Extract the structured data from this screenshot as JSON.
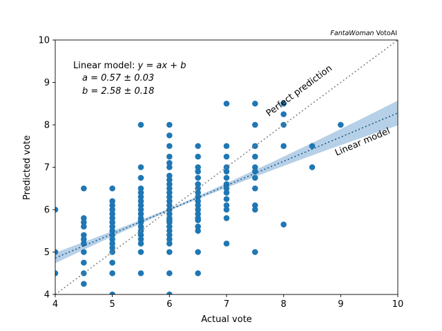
{
  "chart_data": {
    "type": "scatter",
    "title": "",
    "credit": {
      "italic": "FantaWoman",
      "normal": " VotoAI"
    },
    "xlabel": "Actual vote",
    "ylabel": "Predicted vote",
    "xlim": [
      4,
      10
    ],
    "ylim": [
      4,
      10
    ],
    "xticks": [
      "4",
      "5",
      "6",
      "7",
      "8",
      "9",
      "10"
    ],
    "yticks": [
      "4",
      "5",
      "6",
      "7",
      "8",
      "9",
      "10"
    ],
    "grid": false,
    "colors": {
      "points": "#1f77b4",
      "fit_line": "#1f77b4",
      "fit_band": "#a9c8e3",
      "perfect_line": "#808080"
    },
    "model": {
      "heading_prefix": "Linear model: ",
      "heading_formula": "y = ax + b",
      "a_text": "a = 0.57 ± 0.03",
      "b_text": "b = 2.58 ± 0.18",
      "a": 0.57,
      "b": 2.58
    },
    "lines": [
      {
        "name": "Perfect prediction",
        "slope": 1,
        "intercept": 0
      },
      {
        "name": "Linear model",
        "slope": 0.57,
        "intercept": 2.58
      }
    ],
    "points": [
      [
        4,
        6
      ],
      [
        4,
        5
      ],
      [
        4,
        4.5
      ],
      [
        4.5,
        6.5
      ],
      [
        4.5,
        5.8
      ],
      [
        4.5,
        5.7
      ],
      [
        4.5,
        5.6
      ],
      [
        4.5,
        5.4
      ],
      [
        4.5,
        5.3
      ],
      [
        4.5,
        5.2
      ],
      [
        4.5,
        5
      ],
      [
        4.5,
        4.75
      ],
      [
        4.5,
        4.5
      ],
      [
        4.5,
        4.25
      ],
      [
        5,
        6.5
      ],
      [
        5,
        6.2
      ],
      [
        5,
        6.1
      ],
      [
        5,
        6
      ],
      [
        5,
        5.9
      ],
      [
        5,
        5.8
      ],
      [
        5,
        5.7
      ],
      [
        5,
        5.6
      ],
      [
        5,
        5.5
      ],
      [
        5,
        5.4
      ],
      [
        5,
        5.3
      ],
      [
        5,
        5.2
      ],
      [
        5,
        5.1
      ],
      [
        5,
        5
      ],
      [
        5,
        4.75
      ],
      [
        5,
        4.5
      ],
      [
        5,
        4
      ],
      [
        5.5,
        8
      ],
      [
        5.5,
        7
      ],
      [
        5.5,
        6.75
      ],
      [
        5.5,
        6.5
      ],
      [
        5.5,
        6.4
      ],
      [
        5.5,
        6.3
      ],
      [
        5.5,
        6.2
      ],
      [
        5.5,
        6.1
      ],
      [
        5.5,
        6
      ],
      [
        5.5,
        5.9
      ],
      [
        5.5,
        5.8
      ],
      [
        5.5,
        5.75
      ],
      [
        5.5,
        5.7
      ],
      [
        5.5,
        5.6
      ],
      [
        5.5,
        5.5
      ],
      [
        5.5,
        5.4
      ],
      [
        5.5,
        5.3
      ],
      [
        5.5,
        5.2
      ],
      [
        5.5,
        5
      ],
      [
        5.5,
        4.5
      ],
      [
        6,
        8
      ],
      [
        6,
        7.75
      ],
      [
        6,
        7.5
      ],
      [
        6,
        7.25
      ],
      [
        6,
        7.1
      ],
      [
        6,
        7
      ],
      [
        6,
        6.8
      ],
      [
        6,
        6.7
      ],
      [
        6,
        6.6
      ],
      [
        6,
        6.5
      ],
      [
        6,
        6.4
      ],
      [
        6,
        6.3
      ],
      [
        6,
        6.2
      ],
      [
        6,
        6.1
      ],
      [
        6,
        6
      ],
      [
        6,
        5.9
      ],
      [
        6,
        5.8
      ],
      [
        6,
        5.75
      ],
      [
        6,
        5.7
      ],
      [
        6,
        5.6
      ],
      [
        6,
        5.5
      ],
      [
        6,
        5.4
      ],
      [
        6,
        5.3
      ],
      [
        6,
        5.2
      ],
      [
        6,
        5
      ],
      [
        6,
        4.5
      ],
      [
        6,
        4
      ],
      [
        6.5,
        7.5
      ],
      [
        6.5,
        7.25
      ],
      [
        6.5,
        7
      ],
      [
        6.5,
        6.9
      ],
      [
        6.5,
        6.75
      ],
      [
        6.5,
        6.6
      ],
      [
        6.5,
        6.5
      ],
      [
        6.5,
        6.4
      ],
      [
        6.5,
        6.3
      ],
      [
        6.5,
        6.2
      ],
      [
        6.5,
        6.1
      ],
      [
        6.5,
        6
      ],
      [
        6.5,
        5.9
      ],
      [
        6.5,
        5.8
      ],
      [
        6.5,
        5.75
      ],
      [
        6.5,
        5.6
      ],
      [
        6.5,
        5.5
      ],
      [
        6.5,
        5
      ],
      [
        6.5,
        4.5
      ],
      [
        7,
        8.5
      ],
      [
        7,
        7.5
      ],
      [
        7,
        7.25
      ],
      [
        7,
        7
      ],
      [
        7,
        6.9
      ],
      [
        7,
        6.75
      ],
      [
        7,
        6.6
      ],
      [
        7,
        6.5
      ],
      [
        7,
        6.4
      ],
      [
        7,
        6.25
      ],
      [
        7,
        6.1
      ],
      [
        7,
        6
      ],
      [
        7,
        5.8
      ],
      [
        7,
        5.2
      ],
      [
        7.5,
        8.5
      ],
      [
        7.5,
        8
      ],
      [
        7.5,
        7.5
      ],
      [
        7.5,
        7.25
      ],
      [
        7.5,
        7
      ],
      [
        7.5,
        6.9
      ],
      [
        7.5,
        6.75
      ],
      [
        7.5,
        6.5
      ],
      [
        7.5,
        6.1
      ],
      [
        7.5,
        6
      ],
      [
        7.5,
        5
      ],
      [
        8,
        8.5
      ],
      [
        8,
        8.25
      ],
      [
        8,
        8
      ],
      [
        8,
        7.5
      ],
      [
        8,
        5.65
      ],
      [
        8.5,
        7.5
      ],
      [
        8.5,
        7
      ],
      [
        9,
        8
      ]
    ]
  }
}
